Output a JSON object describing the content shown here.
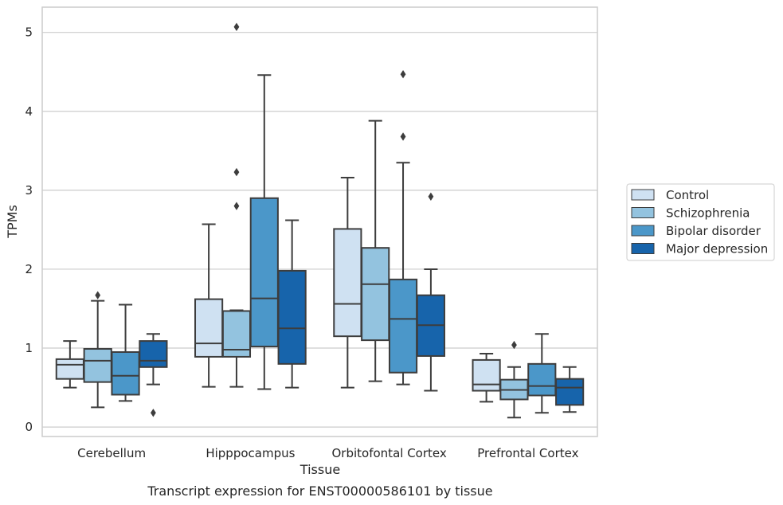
{
  "chart_data": {
    "type": "boxplot",
    "caption": "Transcript expression for ENST00000586101 by tissue",
    "xlabel": "Tissue",
    "ylabel": "TPMs",
    "ylim": [
      -0.12,
      5.32
    ],
    "yticks": [
      0,
      1,
      2,
      3,
      4,
      5
    ],
    "grid": "horizontal",
    "legend_position": "right",
    "categories": [
      "Cerebellum",
      "Hipppocampus",
      "Orbitofontal Cortex",
      "Prefrontal Cortex"
    ],
    "series": [
      {
        "name": "Control",
        "color": "#cfe1f2",
        "boxes": [
          {
            "whisker_low": 0.5,
            "q1": 0.61,
            "median": 0.79,
            "q3": 0.86,
            "whisker_high": 1.09,
            "outliers": []
          },
          {
            "whisker_low": 0.51,
            "q1": 0.89,
            "median": 1.06,
            "q3": 1.62,
            "whisker_high": 2.57,
            "outliers": []
          },
          {
            "whisker_low": 0.5,
            "q1": 1.15,
            "median": 1.56,
            "q3": 2.51,
            "whisker_high": 3.16,
            "outliers": []
          },
          {
            "whisker_low": 0.32,
            "q1": 0.46,
            "median": 0.54,
            "q3": 0.85,
            "whisker_high": 0.93,
            "outliers": []
          }
        ]
      },
      {
        "name": "Schizophrenia",
        "color": "#93c3df",
        "boxes": [
          {
            "whisker_low": 0.25,
            "q1": 0.57,
            "median": 0.84,
            "q3": 0.99,
            "whisker_high": 1.6,
            "outliers": [
              1.67
            ]
          },
          {
            "whisker_low": 0.51,
            "q1": 0.89,
            "median": 0.98,
            "q3": 1.47,
            "whisker_high": 1.48,
            "outliers": [
              2.8,
              3.23,
              5.07
            ]
          },
          {
            "whisker_low": 0.58,
            "q1": 1.1,
            "median": 1.81,
            "q3": 2.27,
            "whisker_high": 3.88,
            "outliers": []
          },
          {
            "whisker_low": 0.12,
            "q1": 0.35,
            "median": 0.47,
            "q3": 0.6,
            "whisker_high": 0.76,
            "outliers": [
              1.04
            ]
          }
        ]
      },
      {
        "name": "Bipolar disorder",
        "color": "#4b97c9",
        "boxes": [
          {
            "whisker_low": 0.33,
            "q1": 0.41,
            "median": 0.65,
            "q3": 0.95,
            "whisker_high": 1.55,
            "outliers": []
          },
          {
            "whisker_low": 0.48,
            "q1": 1.02,
            "median": 1.63,
            "q3": 2.9,
            "whisker_high": 4.46,
            "outliers": []
          },
          {
            "whisker_low": 0.54,
            "q1": 0.69,
            "median": 1.37,
            "q3": 1.87,
            "whisker_high": 3.35,
            "outliers": [
              3.68,
              4.47
            ]
          },
          {
            "whisker_low": 0.18,
            "q1": 0.4,
            "median": 0.52,
            "q3": 0.8,
            "whisker_high": 1.18,
            "outliers": []
          }
        ]
      },
      {
        "name": "Major depression",
        "color": "#1764ab",
        "boxes": [
          {
            "whisker_low": 0.54,
            "q1": 0.76,
            "median": 0.84,
            "q3": 1.09,
            "whisker_high": 1.18,
            "outliers": [
              0.18
            ]
          },
          {
            "whisker_low": 0.5,
            "q1": 0.8,
            "median": 1.25,
            "q3": 1.98,
            "whisker_high": 2.62,
            "outliers": []
          },
          {
            "whisker_low": 0.46,
            "q1": 0.9,
            "median": 1.29,
            "q3": 1.67,
            "whisker_high": 2.0,
            "outliers": [
              2.92
            ]
          },
          {
            "whisker_low": 0.19,
            "q1": 0.28,
            "median": 0.5,
            "q3": 0.61,
            "whisker_high": 0.76,
            "outliers": []
          }
        ]
      }
    ]
  }
}
